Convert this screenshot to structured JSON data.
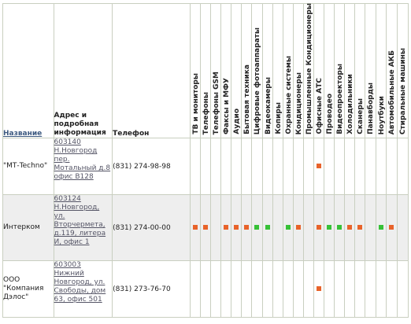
{
  "headers": {
    "name": "Название",
    "address": "Адрес и подробная информация",
    "phone": "Телефон"
  },
  "categories": [
    "ТВ и мониторы",
    "Телефоны",
    "Телефоны GSM",
    "Факсы и МФУ",
    "Аудио",
    "Бытовая техника",
    "Цифровые фотоаппараты",
    "Видеокамеры",
    "Копиры",
    "Охранные системы",
    "Кондиционеры",
    "Промышленные Кондиционеры",
    "Офисные АТС",
    "Проводео",
    "Видеопроекторы",
    "Холодильники",
    "Сканеры",
    "Панавборды",
    "Ноутбуки",
    "Автомобильные АКБ",
    "Стиральные машины"
  ],
  "colors": {
    "orange": "#e8632a",
    "green": "#37c137"
  },
  "rows": [
    {
      "name": "\"МТ-Techno\"",
      "address": "603140 Н.Новгород пер. Мотальный д.8 офис В128",
      "phone": "(831) 274-98-98",
      "marks": [
        "",
        "",
        "",
        "",
        "",
        "",
        "",
        "",
        "",
        "",
        "",
        "",
        "orange",
        "",
        "",
        "",
        "",
        "",
        "",
        "",
        ""
      ]
    },
    {
      "name": "Интерком",
      "address": "603124 Н.Новгород, ул. Вторчермета, д.119, литера И, офис 1",
      "phone": "(831) 274-00-00",
      "marks": [
        "orange",
        "orange",
        "",
        "orange",
        "orange",
        "orange",
        "green",
        "green",
        "",
        "green",
        "orange",
        "",
        "orange",
        "green",
        "green",
        "orange",
        "orange",
        "",
        "green",
        "orange",
        ""
      ]
    },
    {
      "name": "ООО \"Компания Дэлос\"",
      "address": "603003 Нижний Новгород, ул. Свободы, дом 63, офис 501",
      "phone": "(831) 273-76-70",
      "marks": [
        "",
        "",
        "",
        "",
        "",
        "",
        "",
        "",
        "",
        "",
        "",
        "",
        "orange",
        "",
        "",
        "",
        "",
        "",
        "",
        "",
        ""
      ]
    }
  ]
}
